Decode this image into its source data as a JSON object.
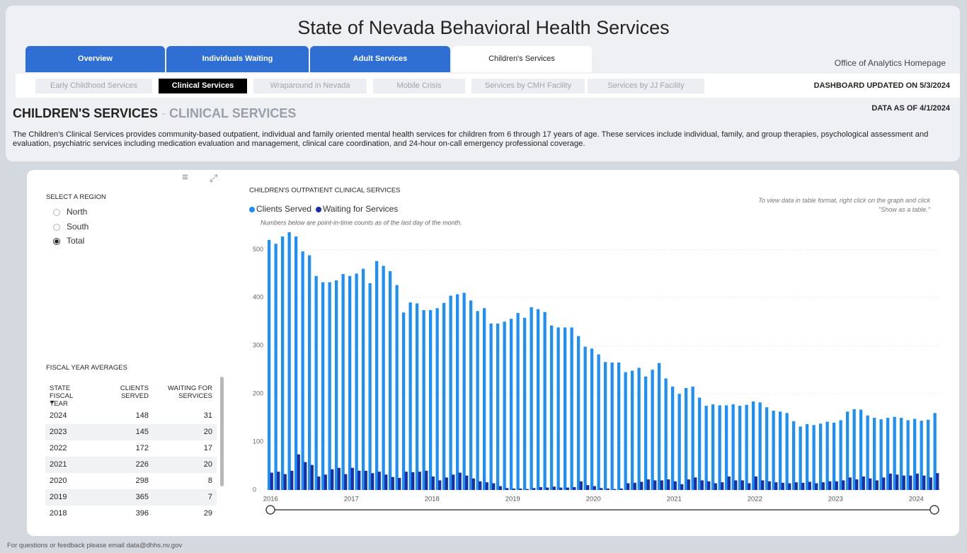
{
  "header": {
    "title": "State of Nevada Behavioral Health Services",
    "homepage_link": "Office of Analytics Homepage",
    "updated": "DASHBOARD UPDATED ON 5/3/2024",
    "data_as_of": "DATA AS OF 4/1/2024"
  },
  "tabs": [
    "Overview",
    "Individuals Waiting",
    "Adult Services",
    "Children's Services"
  ],
  "subtabs": [
    "Early Childhood Services",
    "Clinical Services",
    "Wraparound in Nevada",
    "Mobile Crisis",
    "Services by CMH Facility",
    "Services by JJ Facility"
  ],
  "heading": {
    "section": "CHILDREN'S SERVICES",
    "separator": "-",
    "page": "CLINICAL SERVICES"
  },
  "description": "The Children's Clinical Services provides community-based outpatient, individual and family oriented mental health services for children from 6 through 17 years of age. These services include individual, family, and group therapies, psychological assessment and evaluation, psychiatric services including medication evaluation and management, clinical care coordination, and 24-hour on-call emergency professional coverage.",
  "region_select": {
    "label": "SELECT A REGION",
    "options": [
      "North",
      "South",
      "Total"
    ]
  },
  "table": {
    "title": "FISCAL YEAR AVERAGES",
    "columns": [
      "STATE FISCAL YEAR",
      "CLIENTS SERVED",
      "WAITING FOR SERVICES"
    ],
    "rows": [
      [
        2024,
        148,
        31
      ],
      [
        2023,
        145,
        20
      ],
      [
        2022,
        172,
        17
      ],
      [
        2021,
        226,
        20
      ],
      [
        2020,
        298,
        8
      ],
      [
        2019,
        365,
        7
      ],
      [
        2018,
        396,
        29
      ]
    ]
  },
  "footer": "For questions or feedback please email data@dhhs.nv.gov",
  "chart_data": {
    "type": "bar",
    "title": "CHILDREN'S OUTPATIENT CLINICAL SERVICES",
    "subtitle": "Numbers below are point-in-time counts as of the last day of the month.",
    "annotation": "To view data in table format, right click on the graph and click \"Show as a table.\"",
    "categories": [
      "2016",
      null,
      null,
      null,
      null,
      null,
      null,
      null,
      null,
      null,
      null,
      null,
      "2017",
      null,
      null,
      null,
      null,
      null,
      null,
      null,
      null,
      null,
      null,
      null,
      "2018",
      null,
      null,
      null,
      null,
      null,
      null,
      null,
      null,
      null,
      null,
      null,
      "2019",
      null,
      null,
      null,
      null,
      null,
      null,
      null,
      null,
      null,
      null,
      null,
      "2020",
      null,
      null,
      null,
      null,
      null,
      null,
      null,
      null,
      null,
      null,
      null,
      "2021",
      null,
      null,
      null,
      null,
      null,
      null,
      null,
      null,
      null,
      null,
      null,
      "2022",
      null,
      null,
      null,
      null,
      null,
      null,
      null,
      null,
      null,
      null,
      null,
      "2023",
      null,
      null,
      null,
      null,
      null,
      null,
      null,
      null,
      null,
      null,
      null,
      "2024",
      null,
      null,
      null
    ],
    "series": [
      {
        "name": "Clients Served",
        "color": "#1e8ff5",
        "values": [
          520,
          512,
          527,
          536,
          527,
          496,
          488,
          445,
          432,
          432,
          436,
          449,
          445,
          450,
          460,
          430,
          476,
          466,
          455,
          426,
          369,
          390,
          388,
          374,
          374,
          378,
          389,
          404,
          407,
          410,
          394,
          372,
          378,
          346,
          346,
          350,
          356,
          368,
          358,
          380,
          376,
          370,
          342,
          338,
          338,
          338,
          320,
          298,
          294,
          282,
          266,
          265,
          265,
          245,
          248,
          254,
          236,
          250,
          264,
          232,
          215,
          200,
          212,
          215,
          192,
          175,
          178,
          176,
          176,
          178,
          175,
          177,
          184,
          182,
          172,
          165,
          163,
          160,
          143,
          132,
          137,
          135,
          138,
          142,
          140,
          145,
          163,
          168,
          167,
          155,
          150,
          147,
          150,
          152,
          150,
          145,
          148,
          144,
          146,
          160
        ]
      },
      {
        "name": "Waiting for Services",
        "color": "#1a2fa3",
        "values": [
          36,
          38,
          33,
          40,
          74,
          58,
          52,
          28,
          32,
          43,
          46,
          33,
          46,
          40,
          40,
          35,
          38,
          32,
          27,
          25,
          38,
          37,
          38,
          40,
          28,
          20,
          26,
          32,
          36,
          30,
          24,
          18,
          16,
          14,
          8,
          4,
          3,
          3,
          2,
          4,
          6,
          5,
          7,
          5,
          5,
          6,
          18,
          10,
          8,
          4,
          3,
          2,
          3,
          14,
          15,
          17,
          22,
          20,
          20,
          22,
          18,
          12,
          22,
          26,
          20,
          18,
          14,
          16,
          28,
          20,
          20,
          14,
          28,
          20,
          18,
          16,
          15,
          14,
          16,
          15,
          17,
          14,
          16,
          18,
          18,
          20,
          26,
          22,
          28,
          24,
          20,
          26,
          34,
          32,
          30,
          30,
          34,
          30,
          26,
          35
        ]
      }
    ],
    "ylim": [
      0,
      530
    ],
    "yticks": [
      0,
      100,
      200,
      300,
      400,
      500
    ],
    "grid": true,
    "legend": "top-left"
  }
}
